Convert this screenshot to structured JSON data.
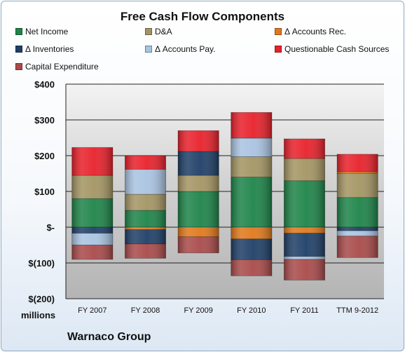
{
  "chart_data": {
    "type": "bar",
    "stacked": true,
    "title": "Free Cash Flow Components",
    "xlabel": "",
    "ylabel": "millions",
    "ylim": [
      -200,
      400
    ],
    "yticks": [
      400,
      300,
      200,
      100,
      0,
      -100,
      -200
    ],
    "ytick_labels": [
      "$400",
      "$300",
      "$200",
      "$100",
      "$-",
      "$(100)",
      "$(200)"
    ],
    "grid": true,
    "legend_position": "top",
    "categories": [
      "FY 2007",
      "FY 2008",
      "FY 2009",
      "FY 2010",
      "FY 2011",
      "TTM 9-2012"
    ],
    "series": [
      {
        "name": "Net Income",
        "color": "#1e8449",
        "values": [
          80,
          47,
          100,
          140,
          130,
          83
        ]
      },
      {
        "name": "D&A",
        "color": "#a39563",
        "values": [
          65,
          45,
          45,
          57,
          62,
          68
        ]
      },
      {
        "name": "Δ Accounts Rec.",
        "color": "#e0791c",
        "values": [
          0,
          -7,
          -27,
          -33,
          -17,
          5
        ]
      },
      {
        "name": "Δ Inventories",
        "color": "#1f3f67",
        "values": [
          -17,
          -40,
          67,
          -58,
          -65,
          -10
        ]
      },
      {
        "name": "Δ Accounts Pay.",
        "color": "#a9c3e1",
        "values": [
          -33,
          70,
          0,
          52,
          -8,
          -15
        ]
      },
      {
        "name": "Questionable Cash Sources",
        "color": "#e8212b",
        "values": [
          78,
          38,
          58,
          72,
          55,
          48
        ]
      },
      {
        "name": "Capital Expenditure",
        "color": "#a94a4a",
        "values": [
          -40,
          -40,
          -45,
          -45,
          -58,
          -60
        ]
      }
    ]
  },
  "footer": "Warnaco Group"
}
